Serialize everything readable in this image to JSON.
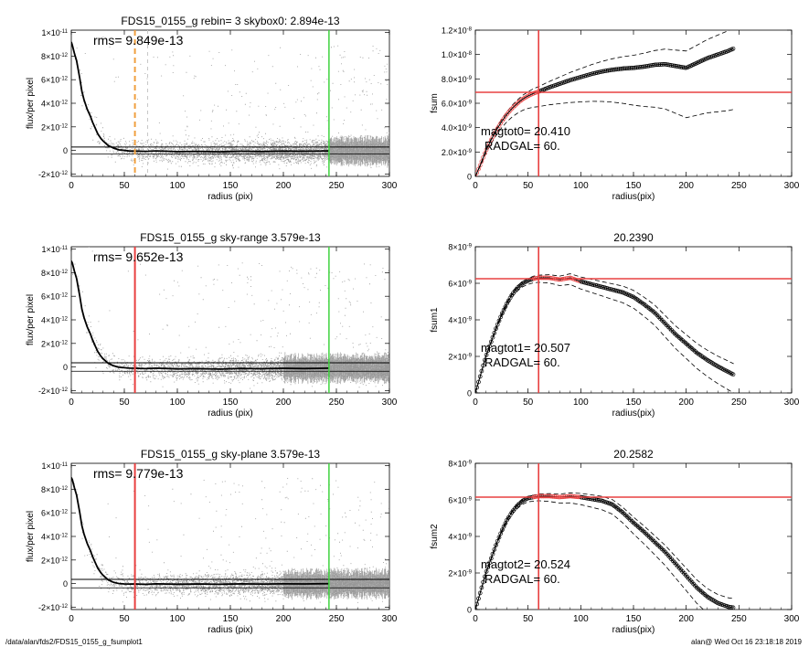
{
  "footer": {
    "left": "/data/alan/fds2/FDS15_0155_g_fsumplot1",
    "right": "alan@  Wed Oct 16 23:18:18 2019"
  },
  "colors": {
    "scatter": "#999999",
    "profile": "#000000",
    "red": "#e84040",
    "green": "#3fd33f",
    "orange": "#f0a040",
    "dashed_light": "#c8c8c8"
  },
  "chart_data": [
    {
      "type": "scatter",
      "title": "FDS15_0155_g rebin= 3    skybox0:  2.894e-13",
      "annotation": "rms= 9.849e-13",
      "xlabel": "radius (pix)",
      "ylabel": "flux/per pixel",
      "xlim": [
        0,
        300
      ],
      "ylim": [
        -2.2e-12,
        1.02e-11
      ],
      "xticks": [
        "0",
        "50",
        "100",
        "150",
        "200",
        "250",
        "300"
      ],
      "yticks": [
        {
          "value": 1e-11,
          "mant": "1×10",
          "exp": "-11"
        },
        {
          "value": 8e-12,
          "mant": "8×10",
          "exp": "-12"
        },
        {
          "value": 6e-12,
          "mant": "6×10",
          "exp": "-12"
        },
        {
          "value": 4e-12,
          "mant": "4×10",
          "exp": "-12"
        },
        {
          "value": 2e-12,
          "mant": "2×10",
          "exp": "-12"
        },
        {
          "value": 0,
          "mant": "0",
          "exp": ""
        },
        {
          "value": -2e-12,
          "mant": "-2×10",
          "exp": "-12"
        }
      ],
      "profile": {
        "x": [
          0,
          1,
          3,
          5,
          8,
          10,
          12,
          15,
          18,
          20,
          23,
          25,
          28,
          30,
          35,
          40,
          45,
          50,
          55,
          60,
          70,
          80,
          100,
          120,
          140,
          160,
          180,
          200,
          220,
          243
        ],
        "y": [
          9.2e-12,
          8.9e-12,
          8.2e-12,
          7.6e-12,
          6.1e-12,
          5e-12,
          4.3e-12,
          3.5e-12,
          2.9e-12,
          2.4e-12,
          1.8e-12,
          1.4e-12,
          1e-12,
          8e-13,
          4e-13,
          2e-13,
          5e-14,
          1e-14,
          -5e-14,
          -5e-14,
          -8e-14,
          -4e-14,
          -1e-13,
          -8e-14,
          -1.2e-13,
          -6e-14,
          -9e-14,
          -5e-14,
          -7e-14,
          -4e-14
        ]
      },
      "hlines": [
        {
          "value": 2.894e-13,
          "color": "#000000",
          "width": 1
        },
        {
          "value": -2.894e-13,
          "color": "#000000",
          "width": 0.8
        }
      ],
      "vlines": [
        {
          "x": 60,
          "color": "#f0a040",
          "width": 2,
          "dash": "6,4"
        },
        {
          "x": 72,
          "color": "#c8c8c8",
          "width": 1,
          "dash": "4,4"
        },
        {
          "x": 243,
          "color": "#3fd33f",
          "width": 1.5,
          "dash": ""
        }
      ],
      "noise": 4.5e-13,
      "errorbars_from": 243
    },
    {
      "type": "line",
      "title": "",
      "annotation_lines": [
        "magtot0=  20.410",
        "RADGAL=      60."
      ],
      "xlabel": "radius(pix)",
      "ylabel": "fsum",
      "xlim": [
        0,
        300
      ],
      "ylim": [
        0,
        1.2e-08
      ],
      "xticks": [
        "0",
        "50",
        "100",
        "150",
        "200",
        "250",
        "300"
      ],
      "yticks": [
        {
          "value": 1.2e-08,
          "mant": "1.2×10",
          "exp": "-8"
        },
        {
          "value": 1e-08,
          "mant": "1.0×10",
          "exp": "-8"
        },
        {
          "value": 8e-09,
          "mant": "8.0×10",
          "exp": "-9"
        },
        {
          "value": 6e-09,
          "mant": "6.0×10",
          "exp": "-9"
        },
        {
          "value": 4e-09,
          "mant": "4.0×10",
          "exp": "-9"
        },
        {
          "value": 2e-09,
          "mant": "2.0×10",
          "exp": "-9"
        },
        {
          "value": 0,
          "mant": "0",
          "exp": ""
        }
      ],
      "series": [
        {
          "x": [
            0,
            5,
            10,
            15,
            20,
            25,
            30,
            35,
            40,
            45,
            50,
            55,
            60,
            70,
            80,
            90,
            100,
            110,
            120,
            130,
            140,
            150,
            160,
            170,
            180,
            190,
            200,
            210,
            220,
            230,
            240,
            245
          ],
          "y": [
            0,
            1e-09,
            2.1e-09,
            3e-09,
            3.8e-09,
            4.5e-09,
            5.1e-09,
            5.6e-09,
            6e-09,
            6.35e-09,
            6.6e-09,
            6.8e-09,
            6.95e-09,
            7.3e-09,
            7.6e-09,
            7.9e-09,
            8.15e-09,
            8.4e-09,
            8.6e-09,
            8.75e-09,
            8.85e-09,
            8.9e-09,
            9e-09,
            9.15e-09,
            9.2e-09,
            9.05e-09,
            8.9e-09,
            9.3e-09,
            9.7e-09,
            1e-08,
            1.03e-08,
            1.05e-08
          ]
        }
      ],
      "dashed_offsets": [
        1.7e-10,
        -5e-10
      ],
      "dashed_scale": [
        0,
        1e-09
      ],
      "hline": 6.9e-09,
      "vline": 60,
      "red_segment": [
        0,
        60
      ]
    },
    {
      "type": "scatter",
      "title": "FDS15_0155_g sky-range  3.579e-13",
      "annotation": "rms= 9.652e-13",
      "xlabel": "radius (pix)",
      "ylabel": "flux/per pixel",
      "xlim": [
        0,
        300
      ],
      "ylim": [
        -2.2e-12,
        1.02e-11
      ],
      "xticks": [
        "0",
        "50",
        "100",
        "150",
        "200",
        "250",
        "300"
      ],
      "yticks": [
        {
          "value": 1e-11,
          "mant": "1×10",
          "exp": "-11"
        },
        {
          "value": 8e-12,
          "mant": "8×10",
          "exp": "-12"
        },
        {
          "value": 6e-12,
          "mant": "6×10",
          "exp": "-12"
        },
        {
          "value": 4e-12,
          "mant": "4×10",
          "exp": "-12"
        },
        {
          "value": 2e-12,
          "mant": "2×10",
          "exp": "-12"
        },
        {
          "value": 0,
          "mant": "0",
          "exp": ""
        },
        {
          "value": -2e-12,
          "mant": "-2×10",
          "exp": "-12"
        }
      ],
      "profile": {
        "x": [
          0,
          1,
          3,
          5,
          8,
          10,
          12,
          15,
          18,
          20,
          23,
          25,
          28,
          30,
          35,
          40,
          45,
          50,
          55,
          60,
          70,
          80,
          100,
          120,
          140,
          160,
          180,
          200,
          220,
          243
        ],
        "y": [
          9e-12,
          8.8e-12,
          8.1e-12,
          7.5e-12,
          6e-12,
          4.9e-12,
          4.2e-12,
          3.4e-12,
          2.8e-12,
          2.3e-12,
          1.7e-12,
          1.3e-12,
          9e-13,
          7e-13,
          3e-13,
          1e-13,
          -2e-14,
          -6e-14,
          -1e-13,
          -1.1e-13,
          -1.4e-13,
          -1e-13,
          -1.6e-13,
          -1.4e-13,
          -1.8e-13,
          -1.2e-13,
          -1.5e-13,
          -1.1e-13,
          -1.3e-13,
          -1e-13
        ]
      },
      "hlines": [
        {
          "value": 3.579e-13,
          "color": "#000000",
          "width": 1
        },
        {
          "value": -3.579e-13,
          "color": "#000000",
          "width": 0.8
        }
      ],
      "vlines": [
        {
          "x": 60,
          "color": "#e84040",
          "width": 2,
          "dash": ""
        },
        {
          "x": 243,
          "color": "#3fd33f",
          "width": 1.5,
          "dash": ""
        }
      ],
      "noise": 4.5e-13,
      "errorbars_from": 0
    },
    {
      "type": "line",
      "title": "20.2390",
      "annotation_lines": [
        "magtot1=  20.507",
        "RADGAL=      60."
      ],
      "xlabel": "radius(pix)",
      "ylabel": "fsum1",
      "xlim": [
        0,
        300
      ],
      "ylim": [
        0,
        8e-09
      ],
      "xticks": [
        "0",
        "50",
        "100",
        "150",
        "200",
        "250",
        "300"
      ],
      "yticks": [
        {
          "value": 8e-09,
          "mant": "8×10",
          "exp": "-9"
        },
        {
          "value": 6e-09,
          "mant": "6×10",
          "exp": "-9"
        },
        {
          "value": 4e-09,
          "mant": "4×10",
          "exp": "-9"
        },
        {
          "value": 2e-09,
          "mant": "2×10",
          "exp": "-9"
        },
        {
          "value": 0,
          "mant": "0",
          "exp": ""
        }
      ],
      "series": [
        {
          "x": [
            0,
            5,
            10,
            15,
            20,
            25,
            30,
            35,
            40,
            45,
            50,
            55,
            60,
            70,
            80,
            90,
            100,
            110,
            120,
            130,
            140,
            150,
            160,
            170,
            180,
            190,
            200,
            210,
            220,
            230,
            240,
            245
          ],
          "y": [
            0,
            1e-09,
            2e-09,
            2.8e-09,
            3.6e-09,
            4.3e-09,
            4.9e-09,
            5.4e-09,
            5.75e-09,
            6e-09,
            6.15e-09,
            6.25e-09,
            6.3e-09,
            6.3e-09,
            6.2e-09,
            6.3e-09,
            6.1e-09,
            5.95e-09,
            5.8e-09,
            5.65e-09,
            5.5e-09,
            5.25e-09,
            4.85e-09,
            4.4e-09,
            3.8e-09,
            3.2e-09,
            2.7e-09,
            2.2e-09,
            1.8e-09,
            1.45e-09,
            1.15e-09,
            1e-09
          ]
        }
      ],
      "dashed_offsets": [
        6e-11,
        -1e-10
      ],
      "dashed_scale": [
        0,
        1e-09
      ],
      "hline": 6.25e-09,
      "vline": 60,
      "red_segment": [
        55,
        100
      ]
    },
    {
      "type": "scatter",
      "title": "FDS15_0155_g sky-plane  3.579e-13",
      "annotation": "rms= 9.779e-13",
      "xlabel": "radius (pix)",
      "ylabel": "flux/per pixel",
      "xlim": [
        0,
        300
      ],
      "ylim": [
        -2.2e-12,
        1.02e-11
      ],
      "xticks": [
        "0",
        "50",
        "100",
        "150",
        "200",
        "250",
        "300"
      ],
      "yticks": [
        {
          "value": 1e-11,
          "mant": "1×10",
          "exp": "-11"
        },
        {
          "value": 8e-12,
          "mant": "8×10",
          "exp": "-12"
        },
        {
          "value": 6e-12,
          "mant": "6×10",
          "exp": "-12"
        },
        {
          "value": 4e-12,
          "mant": "4×10",
          "exp": "-12"
        },
        {
          "value": 2e-12,
          "mant": "2×10",
          "exp": "-12"
        },
        {
          "value": 0,
          "mant": "0",
          "exp": ""
        },
        {
          "value": -2e-12,
          "mant": "-2×10",
          "exp": "-12"
        }
      ],
      "profile": {
        "x": [
          0,
          1,
          3,
          5,
          8,
          10,
          12,
          15,
          18,
          20,
          23,
          25,
          28,
          30,
          35,
          40,
          45,
          50,
          55,
          60,
          70,
          80,
          100,
          120,
          140,
          160,
          180,
          200,
          220,
          243
        ],
        "y": [
          9e-12,
          8.8e-12,
          8.1e-12,
          7.5e-12,
          6e-12,
          4.9e-12,
          4.2e-12,
          3.4e-12,
          2.8e-12,
          2.3e-12,
          1.7e-12,
          1.3e-12,
          9e-13,
          7e-13,
          3e-13,
          1e-13,
          0,
          -3e-14,
          -4e-14,
          -3e-14,
          -6e-14,
          -2e-14,
          -5e-14,
          -3e-14,
          -6e-14,
          -2e-14,
          -4e-14,
          -2e-14,
          -3e-14,
          -1e-14
        ]
      },
      "hlines": [
        {
          "value": 3.579e-13,
          "color": "#000000",
          "width": 1
        },
        {
          "value": -3.579e-13,
          "color": "#000000",
          "width": 0.8
        }
      ],
      "vlines": [
        {
          "x": 60,
          "color": "#e84040",
          "width": 2,
          "dash": ""
        },
        {
          "x": 243,
          "color": "#3fd33f",
          "width": 1.5,
          "dash": ""
        }
      ],
      "noise": 4.5e-13,
      "errorbars_from": 0
    },
    {
      "type": "line",
      "title": "20.2582",
      "annotation_lines": [
        "magtot2=  20.524",
        "RADGAL=      60."
      ],
      "xlabel": "radius(pix)",
      "ylabel": "fsum2",
      "xlim": [
        0,
        300
      ],
      "ylim": [
        0,
        8e-09
      ],
      "xticks": [
        "0",
        "50",
        "100",
        "150",
        "200",
        "250",
        "300"
      ],
      "yticks": [
        {
          "value": 8e-09,
          "mant": "8×10",
          "exp": "-9"
        },
        {
          "value": 6e-09,
          "mant": "6×10",
          "exp": "-9"
        },
        {
          "value": 4e-09,
          "mant": "4×10",
          "exp": "-9"
        },
        {
          "value": 2e-09,
          "mant": "2×10",
          "exp": "-9"
        },
        {
          "value": 0,
          "mant": "0",
          "exp": ""
        }
      ],
      "series": [
        {
          "x": [
            0,
            5,
            10,
            15,
            20,
            25,
            30,
            35,
            40,
            45,
            50,
            55,
            60,
            70,
            80,
            90,
            100,
            110,
            120,
            130,
            140,
            150,
            160,
            170,
            180,
            190,
            200,
            210,
            220,
            230,
            240,
            245
          ],
          "y": [
            0,
            1e-09,
            2e-09,
            2.8e-09,
            3.6e-09,
            4.3e-09,
            4.9e-09,
            5.35e-09,
            5.7e-09,
            5.95e-09,
            6.1e-09,
            6.15e-09,
            6.2e-09,
            6.2e-09,
            6.15e-09,
            6.2e-09,
            6.15e-09,
            6.05e-09,
            5.95e-09,
            5.75e-09,
            5.3e-09,
            4.75e-09,
            4.25e-09,
            3.7e-09,
            3.15e-09,
            2.5e-09,
            1.85e-09,
            1.2e-09,
            7e-10,
            3.5e-10,
            1.5e-10,
            1e-10
          ]
        }
      ],
      "dashed_offsets": [
        5e-11,
        -1e-10
      ],
      "dashed_scale": [
        0,
        1.05e-09
      ],
      "hline": 6.15e-09,
      "vline": 60,
      "red_segment": [
        55,
        100
      ]
    }
  ]
}
